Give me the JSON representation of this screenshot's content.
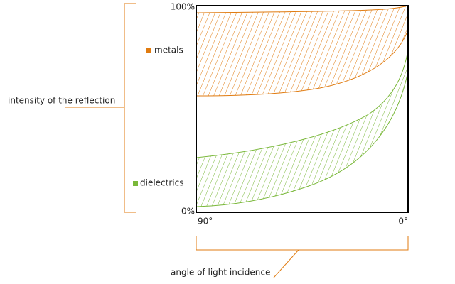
{
  "y_axis": {
    "top_label": "100%",
    "bottom_label": "0%",
    "title": "intensity of the reflection"
  },
  "x_axis": {
    "left_label": "90°",
    "right_label": "0°",
    "title": "angle of light incidence"
  },
  "legend": [
    {
      "label": "metals"
    },
    {
      "label": "dielectrics"
    }
  ]
}
